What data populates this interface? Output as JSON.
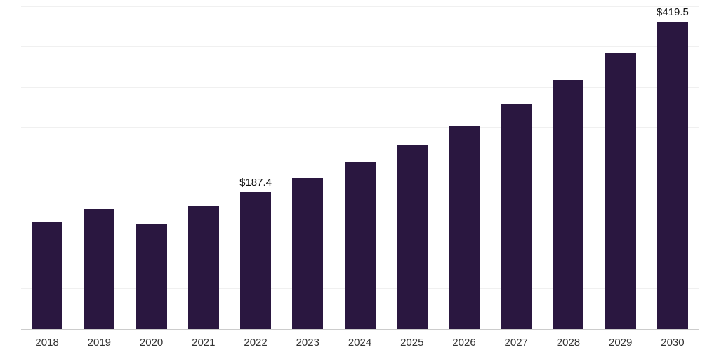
{
  "chart_data": {
    "type": "bar",
    "title": "",
    "xlabel": "",
    "ylabel": "",
    "categories": [
      "2018",
      "2019",
      "2020",
      "2021",
      "2022",
      "2023",
      "2024",
      "2025",
      "2026",
      "2027",
      "2028",
      "2029",
      "2030"
    ],
    "values": [
      147.0,
      163.5,
      143.0,
      167.5,
      187.4,
      206.5,
      228.0,
      251.0,
      278.0,
      308.0,
      340.5,
      378.0,
      419.5
    ],
    "data_labels": {
      "2022": "$187.4",
      "2030": "$419.5"
    },
    "ylim": [
      0,
      440
    ],
    "gridline_count": 8,
    "grid_on": true,
    "legend_position": "none",
    "bar_color": "#2a1740",
    "grid_color": "#f0f0f0",
    "axis_color": "#cccccc",
    "label_color": "#111111",
    "tick_color": "#333333"
  }
}
